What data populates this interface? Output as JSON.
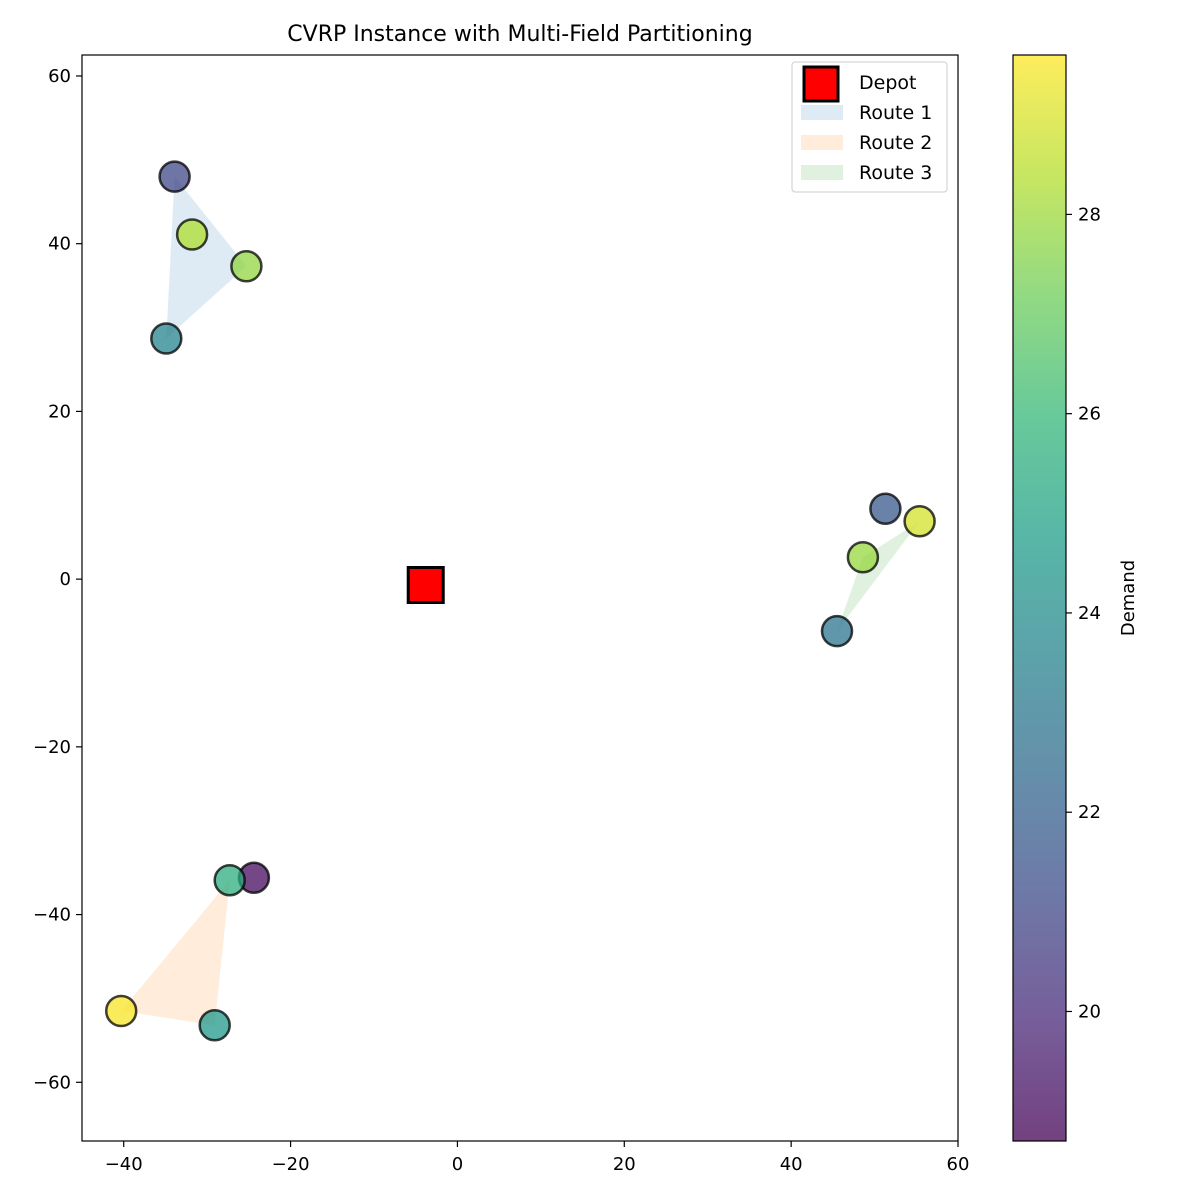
{
  "chart_data": {
    "type": "scatter",
    "title": "CVRP Instance with Multi-Field Partitioning",
    "xlabel": "",
    "ylabel": "",
    "xlim": [
      -45,
      60
    ],
    "ylim": [
      -67,
      62.5
    ],
    "xticks": [
      -40,
      -20,
      0,
      20,
      40,
      60
    ],
    "yticks": [
      -60,
      -40,
      -20,
      0,
      20,
      40,
      60
    ],
    "grid": false,
    "depot": {
      "name": "Depot",
      "x": -3.8,
      "y": -0.7,
      "color": "#ff0000"
    },
    "routes": [
      {
        "name": "Route 1",
        "color": "#1f77b4",
        "hull": [
          [
            -33.9,
            48.0
          ],
          [
            -25.3,
            37.3
          ],
          [
            -34.9,
            28.7
          ]
        ]
      },
      {
        "name": "Route 2",
        "color": "#ff7f0e",
        "hull": [
          [
            -27.3,
            -35.9
          ],
          [
            -29.1,
            -53.2
          ],
          [
            -40.3,
            -51.5
          ]
        ]
      },
      {
        "name": "Route 3",
        "color": "#2ca02c",
        "hull": [
          [
            55.4,
            6.9
          ],
          [
            45.5,
            -6.2
          ],
          [
            48.6,
            2.6
          ]
        ]
      }
    ],
    "customers": [
      {
        "x": -33.9,
        "y": 48.0,
        "demand": 21.0
      },
      {
        "x": -31.8,
        "y": 41.1,
        "demand": 28.3
      },
      {
        "x": -25.3,
        "y": 37.3,
        "demand": 27.8
      },
      {
        "x": -34.9,
        "y": 28.7,
        "demand": 23.6
      },
      {
        "x": 51.3,
        "y": 8.4,
        "demand": 21.7
      },
      {
        "x": 55.4,
        "y": 6.9,
        "demand": 28.9
      },
      {
        "x": 48.6,
        "y": 2.6,
        "demand": 27.9
      },
      {
        "x": 45.5,
        "y": -6.2,
        "demand": 22.9
      },
      {
        "x": -24.4,
        "y": -35.6,
        "demand": 19.0
      },
      {
        "x": -27.3,
        "y": -35.9,
        "demand": 25.5
      },
      {
        "x": -40.3,
        "y": -51.5,
        "demand": 29.5
      },
      {
        "x": -29.1,
        "y": -53.2,
        "demand": 24.5
      }
    ],
    "colorbar": {
      "label": "Demand",
      "colormap": "viridis",
      "vmin": 18.7,
      "vmax": 29.6,
      "ticks": [
        20,
        22,
        24,
        26,
        28
      ]
    },
    "legend": {
      "placement": "top-right"
    }
  }
}
